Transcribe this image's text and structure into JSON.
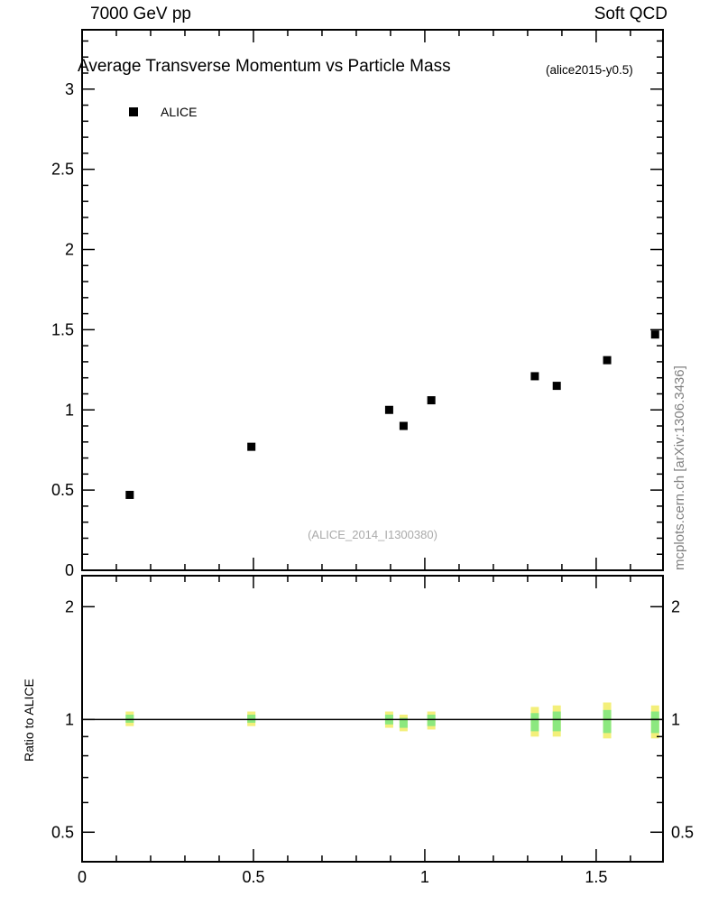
{
  "header": {
    "left": "7000 GeV pp",
    "right": "Soft QCD"
  },
  "main": {
    "title": "Average Transverse Momentum vs Particle Mass",
    "subtitle": "(alice2015-y0.5)",
    "legend_label": "ALICE",
    "watermark": "(ALICE_2014_I1300380)"
  },
  "side_label": "mcplots.cern.ch [arXiv:1306.3436]",
  "ratio": {
    "ylabel": "Ratio to ALICE"
  },
  "colors": {
    "marker": "#000000",
    "axis": "#000000",
    "band_outer": "#f3ef7a",
    "band_inner": "#8ce87f",
    "watermark": "#aaaaaa",
    "side_label": "#808080"
  },
  "chart_data": [
    {
      "type": "scatter",
      "title": "Average Transverse Momentum vs Particle Mass",
      "xlabel": "",
      "ylabel": "",
      "xlim": [
        0,
        1.695
      ],
      "ylim": [
        0,
        3.37
      ],
      "xticks": [
        0,
        0.5,
        1,
        1.5
      ],
      "xtick_minor_step": 0.1,
      "yticks": [
        0,
        0.5,
        1,
        1.5,
        2,
        2.5,
        3
      ],
      "ytick_minor_step": 0.1,
      "grid": false,
      "legend_position": "top-left",
      "series": [
        {
          "name": "ALICE",
          "marker": "filled-square",
          "color": "#000000",
          "points": [
            [
              0.139,
              0.47
            ],
            [
              0.494,
              0.77
            ],
            [
              0.896,
              1.0
            ],
            [
              0.938,
              0.9
            ],
            [
              1.019,
              1.06
            ],
            [
              1.321,
              1.21
            ],
            [
              1.385,
              1.15
            ],
            [
              1.532,
              1.31
            ],
            [
              1.672,
              1.47
            ]
          ]
        }
      ]
    },
    {
      "type": "ratio-band",
      "ylabel": "Ratio to ALICE",
      "yscale": "log",
      "ylim": [
        0.417,
        2.42
      ],
      "yticks": [
        0.5,
        1,
        2
      ],
      "yticks_minor": [
        0.6,
        0.7,
        0.8,
        0.9
      ],
      "xticks": [
        0,
        0.5,
        1,
        1.5
      ],
      "xtick_minor_step": 0.1,
      "reference_line": 1.0,
      "bands": [
        {
          "x": 0.139,
          "outer": [
            0.96,
            1.05
          ],
          "inner": [
            0.98,
            1.03
          ]
        },
        {
          "x": 0.494,
          "outer": [
            0.96,
            1.05
          ],
          "inner": [
            0.98,
            1.03
          ]
        },
        {
          "x": 0.896,
          "outer": [
            0.95,
            1.05
          ],
          "inner": [
            0.97,
            1.03
          ]
        },
        {
          "x": 0.938,
          "outer": [
            0.93,
            1.03
          ],
          "inner": [
            0.95,
            1.01
          ]
        },
        {
          "x": 1.019,
          "outer": [
            0.94,
            1.05
          ],
          "inner": [
            0.96,
            1.03
          ]
        },
        {
          "x": 1.321,
          "outer": [
            0.9,
            1.08
          ],
          "inner": [
            0.93,
            1.04
          ]
        },
        {
          "x": 1.385,
          "outer": [
            0.9,
            1.09
          ],
          "inner": [
            0.93,
            1.05
          ]
        },
        {
          "x": 1.532,
          "outer": [
            0.89,
            1.11
          ],
          "inner": [
            0.92,
            1.06
          ]
        },
        {
          "x": 1.672,
          "outer": [
            0.89,
            1.09
          ],
          "inner": [
            0.92,
            1.05
          ]
        }
      ]
    }
  ]
}
